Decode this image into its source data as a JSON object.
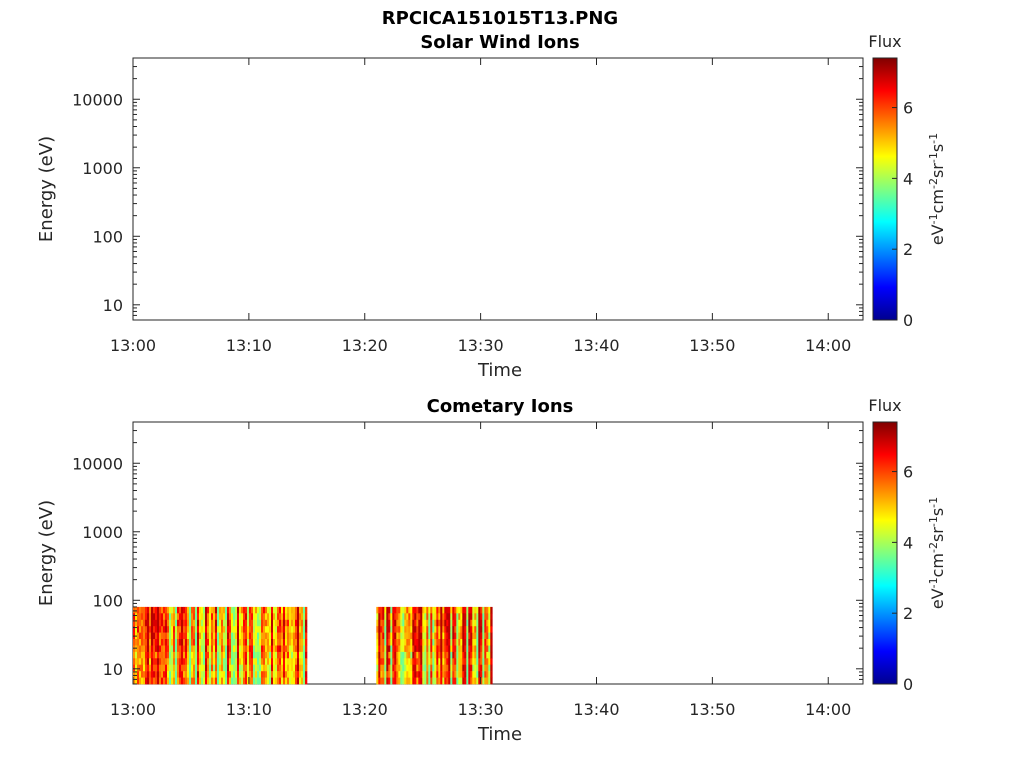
{
  "figure": {
    "title": "RPCICA151015T13.PNG"
  },
  "chart_data": [
    {
      "type": "heatmap",
      "title": "Solar Wind Ions",
      "xlabel": "Time",
      "ylabel": "Energy (eV)",
      "x_tick_labels": [
        "13:00",
        "13:10",
        "13:20",
        "13:30",
        "13:40",
        "13:50",
        "14:00"
      ],
      "x_range": [
        "13:00",
        "14:03"
      ],
      "y_scale": "log",
      "y_tick_labels": [
        "10",
        "100",
        "1000",
        "10000"
      ],
      "y_range": [
        6,
        40000
      ],
      "colorbar": {
        "title": "Flux",
        "label": "eV-1cm-2sr-1s-1",
        "range": [
          0,
          7.4
        ],
        "tick_labels": [
          "0",
          "2",
          "4",
          "6"
        ],
        "colormap": "jet"
      },
      "data_segments": []
    },
    {
      "type": "heatmap",
      "title": "Cometary Ions",
      "xlabel": "Time",
      "ylabel": "Energy (eV)",
      "x_tick_labels": [
        "13:00",
        "13:10",
        "13:20",
        "13:30",
        "13:40",
        "13:50",
        "14:00"
      ],
      "x_range": [
        "13:00",
        "14:03"
      ],
      "y_scale": "log",
      "y_tick_labels": [
        "10",
        "100",
        "1000",
        "10000"
      ],
      "y_range": [
        6,
        40000
      ],
      "colorbar": {
        "title": "Flux",
        "label": "eV-1cm-2sr-1s-1",
        "range": [
          0,
          7.4
        ],
        "tick_labels": [
          "0",
          "2",
          "4",
          "6"
        ],
        "colormap": "jet"
      },
      "data_segments": [
        {
          "start": "13:00",
          "end": "13:15",
          "energy_range": [
            6,
            80
          ],
          "flux_range": [
            3.5,
            7
          ]
        },
        {
          "start": "13:21",
          "end": "13:31",
          "energy_range": [
            6,
            80
          ],
          "flux_range": [
            3.5,
            7
          ]
        }
      ]
    }
  ]
}
